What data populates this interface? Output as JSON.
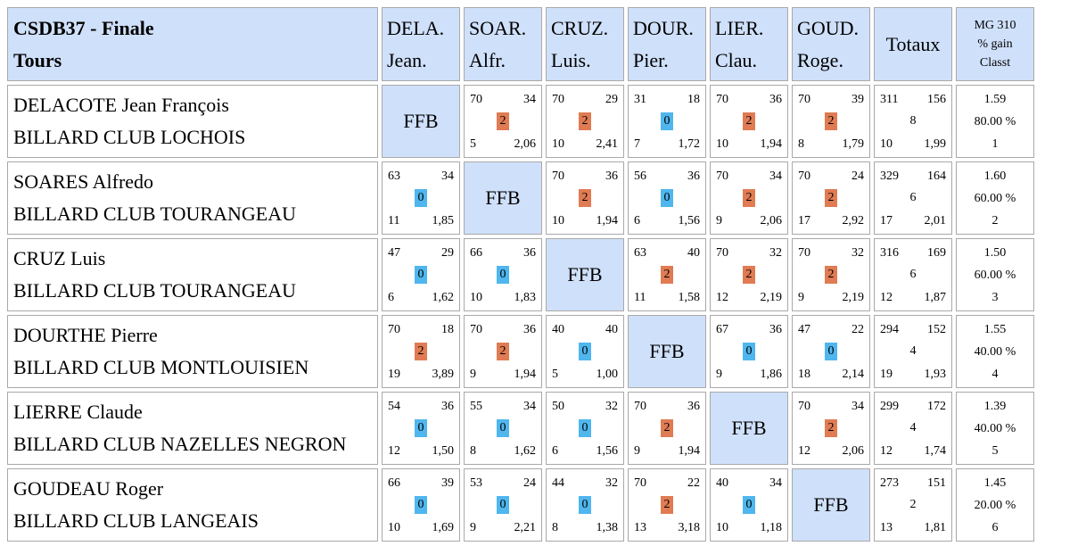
{
  "header": {
    "title_line1": "CSDB37 - Finale",
    "title_line2": "Tours",
    "columns": [
      {
        "line1": "DELA.",
        "line2": "Jean."
      },
      {
        "line1": "SOAR.",
        "line2": "Alfr."
      },
      {
        "line1": "CRUZ.",
        "line2": "Luis."
      },
      {
        "line1": "DOUR.",
        "line2": "Pier."
      },
      {
        "line1": "LIER.",
        "line2": "Clau."
      },
      {
        "line1": "GOUD.",
        "line2": "Roge."
      }
    ],
    "totaux": "Totaux",
    "mg_line1": "MG 310",
    "mg_line2": "% gain",
    "mg_line3": "Classt"
  },
  "ffb_label": "FFB",
  "players": [
    {
      "name": "DELACOTE Jean François",
      "club": "BILLARD CLUB LOCHOIS",
      "matches": [
        null,
        {
          "points": "70",
          "opp": "34",
          "result": "2",
          "reprises": "5",
          "moyenne": "2,06"
        },
        {
          "points": "70",
          "opp": "29",
          "result": "2",
          "reprises": "10",
          "moyenne": "2,41"
        },
        {
          "points": "31",
          "opp": "18",
          "result": "0",
          "reprises": "7",
          "moyenne": "1,72"
        },
        {
          "points": "70",
          "opp": "36",
          "result": "2",
          "reprises": "10",
          "moyenne": "1,94"
        },
        {
          "points": "70",
          "opp": "39",
          "result": "2",
          "reprises": "8",
          "moyenne": "1,79"
        }
      ],
      "totals": {
        "points": "311",
        "opp": "156",
        "result": "8",
        "reprises": "10",
        "moyenne": "1,99"
      },
      "mg": "1.59",
      "pct": "80.00 %",
      "rank": "1"
    },
    {
      "name": "SOARES Alfredo",
      "club": "BILLARD CLUB TOURANGEAU",
      "matches": [
        {
          "points": "63",
          "opp": "34",
          "result": "0",
          "reprises": "11",
          "moyenne": "1,85"
        },
        null,
        {
          "points": "70",
          "opp": "36",
          "result": "2",
          "reprises": "10",
          "moyenne": "1,94"
        },
        {
          "points": "56",
          "opp": "36",
          "result": "0",
          "reprises": "6",
          "moyenne": "1,56"
        },
        {
          "points": "70",
          "opp": "34",
          "result": "2",
          "reprises": "9",
          "moyenne": "2,06"
        },
        {
          "points": "70",
          "opp": "24",
          "result": "2",
          "reprises": "17",
          "moyenne": "2,92"
        }
      ],
      "totals": {
        "points": "329",
        "opp": "164",
        "result": "6",
        "reprises": "17",
        "moyenne": "2,01"
      },
      "mg": "1.60",
      "pct": "60.00 %",
      "rank": "2"
    },
    {
      "name": "CRUZ Luis",
      "club": "BILLARD CLUB TOURANGEAU",
      "matches": [
        {
          "points": "47",
          "opp": "29",
          "result": "0",
          "reprises": "6",
          "moyenne": "1,62"
        },
        {
          "points": "66",
          "opp": "36",
          "result": "0",
          "reprises": "10",
          "moyenne": "1,83"
        },
        null,
        {
          "points": "63",
          "opp": "40",
          "result": "2",
          "reprises": "11",
          "moyenne": "1,58"
        },
        {
          "points": "70",
          "opp": "32",
          "result": "2",
          "reprises": "12",
          "moyenne": "2,19"
        },
        {
          "points": "70",
          "opp": "32",
          "result": "2",
          "reprises": "9",
          "moyenne": "2,19"
        }
      ],
      "totals": {
        "points": "316",
        "opp": "169",
        "result": "6",
        "reprises": "12",
        "moyenne": "1,87"
      },
      "mg": "1.50",
      "pct": "60.00 %",
      "rank": "3"
    },
    {
      "name": "DOURTHE Pierre",
      "club": "BILLARD CLUB MONTLOUISIEN",
      "matches": [
        {
          "points": "70",
          "opp": "18",
          "result": "2",
          "reprises": "19",
          "moyenne": "3,89"
        },
        {
          "points": "70",
          "opp": "36",
          "result": "2",
          "reprises": "9",
          "moyenne": "1,94"
        },
        {
          "points": "40",
          "opp": "40",
          "result": "0",
          "reprises": "5",
          "moyenne": "1,00"
        },
        null,
        {
          "points": "67",
          "opp": "36",
          "result": "0",
          "reprises": "9",
          "moyenne": "1,86"
        },
        {
          "points": "47",
          "opp": "22",
          "result": "0",
          "reprises": "18",
          "moyenne": "2,14"
        }
      ],
      "totals": {
        "points": "294",
        "opp": "152",
        "result": "4",
        "reprises": "19",
        "moyenne": "1,93"
      },
      "mg": "1.55",
      "pct": "40.00 %",
      "rank": "4"
    },
    {
      "name": "LIERRE Claude",
      "club": "BILLARD CLUB NAZELLES NEGRON",
      "matches": [
        {
          "points": "54",
          "opp": "36",
          "result": "0",
          "reprises": "12",
          "moyenne": "1,50"
        },
        {
          "points": "55",
          "opp": "34",
          "result": "0",
          "reprises": "8",
          "moyenne": "1,62"
        },
        {
          "points": "50",
          "opp": "32",
          "result": "0",
          "reprises": "6",
          "moyenne": "1,56"
        },
        {
          "points": "70",
          "opp": "36",
          "result": "2",
          "reprises": "9",
          "moyenne": "1,94"
        },
        null,
        {
          "points": "70",
          "opp": "34",
          "result": "2",
          "reprises": "12",
          "moyenne": "2,06"
        }
      ],
      "totals": {
        "points": "299",
        "opp": "172",
        "result": "4",
        "reprises": "12",
        "moyenne": "1,74"
      },
      "mg": "1.39",
      "pct": "40.00 %",
      "rank": "5"
    },
    {
      "name": "GOUDEAU Roger",
      "club": "BILLARD CLUB LANGEAIS",
      "matches": [
        {
          "points": "66",
          "opp": "39",
          "result": "0",
          "reprises": "10",
          "moyenne": "1,69"
        },
        {
          "points": "53",
          "opp": "24",
          "result": "0",
          "reprises": "9",
          "moyenne": "2,21"
        },
        {
          "points": "44",
          "opp": "32",
          "result": "0",
          "reprises": "8",
          "moyenne": "1,38"
        },
        {
          "points": "70",
          "opp": "22",
          "result": "2",
          "reprises": "13",
          "moyenne": "3,18"
        },
        {
          "points": "40",
          "opp": "34",
          "result": "0",
          "reprises": "10",
          "moyenne": "1,18"
        },
        null
      ],
      "totals": {
        "points": "273",
        "opp": "151",
        "result": "2",
        "reprises": "13",
        "moyenne": "1,81"
      },
      "mg": "1.45",
      "pct": "20.00 %",
      "rank": "6"
    }
  ],
  "colors": {
    "header_bg": "#cfe0fa",
    "win": "#e07b53",
    "loss": "#4fb6ee",
    "border": "#a9a9a9"
  }
}
